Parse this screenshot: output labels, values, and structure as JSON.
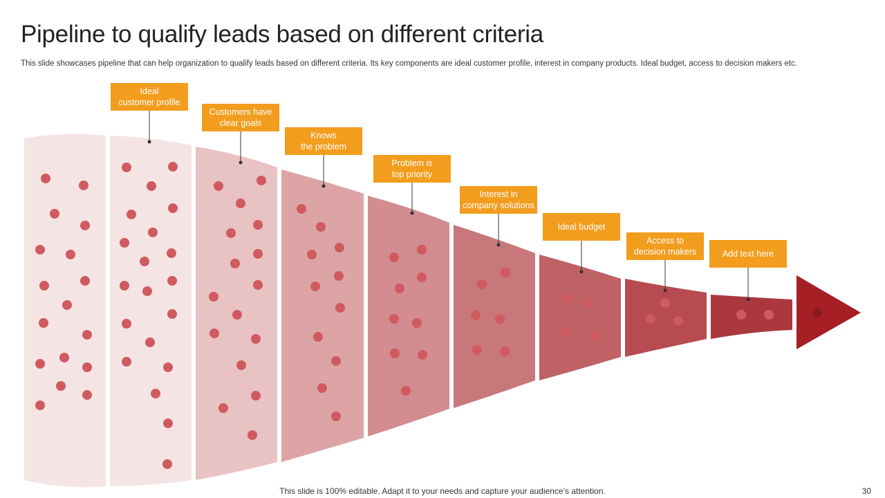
{
  "title": "Pipeline to qualify leads based on different criteria",
  "subtitle": "This slide showcases pipeline that can help organization to qualify leads based on different criteria. Its key components are ideal customer profile, interest in company products. Ideal budget, access to decision makers etc.",
  "stages": [
    {
      "label": "Ideal\ncustomer profile",
      "color": "#f5e4e4"
    },
    {
      "label": "Customers have\nclear goals",
      "color": "#e9c2c3"
    },
    {
      "label": "Knows\nthe problem",
      "color": "#dda4a6"
    },
    {
      "label": "Problem is\ntop priority",
      "color": "#d38c8f"
    },
    {
      "label": "Interest in\ncompany solutions",
      "color": "#c8777a"
    },
    {
      "label": "Ideal budget",
      "color": "#bf6165"
    },
    {
      "label": "Access to\ndecision makers",
      "color": "#b64c51"
    },
    {
      "label": "Add text here",
      "color": "#ab383c"
    }
  ],
  "colors": {
    "accent": "#f29d1e",
    "band0": "#f5e4e4",
    "arrow": "#a51f24",
    "dot": "#cf5a60"
  },
  "footer": "This slide is 100% editable. Adapt it to your needs and capture your audience’s attention.",
  "page_number": "30"
}
